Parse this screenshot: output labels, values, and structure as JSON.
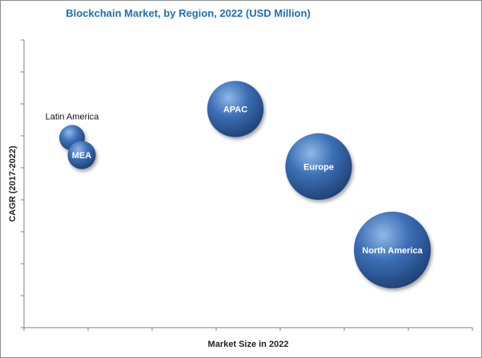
{
  "chart_data": {
    "type": "bubble",
    "title": "Blockchain Market, by Region, 2022 (USD Million)",
    "xlabel": "Market Size in 2022",
    "ylabel": "CAGR (2017-2022)",
    "xlim": [
      0,
      14
    ],
    "ylim": [
      0,
      10
    ],
    "grid": false,
    "points": [
      {
        "label": "Latin America",
        "x": 1.5,
        "y": 6.6,
        "size": 1.0,
        "label_position": "above"
      },
      {
        "label": "MEA",
        "x": 1.8,
        "y": 6.0,
        "size": 1.1,
        "label_position": "inside"
      },
      {
        "label": "APAC",
        "x": 6.6,
        "y": 7.6,
        "size": 2.2,
        "label_position": "inside"
      },
      {
        "label": "Europe",
        "x": 9.2,
        "y": 5.6,
        "size": 2.6,
        "label_position": "inside"
      },
      {
        "label": "North America",
        "x": 11.5,
        "y": 2.7,
        "size": 3.0,
        "label_position": "inside"
      }
    ]
  },
  "colors": {
    "title": "#1f6fb5",
    "bubble_light": "#8fb8e8",
    "bubble_mid": "#3d6fb5",
    "bubble_dark": "#1c3f73"
  }
}
